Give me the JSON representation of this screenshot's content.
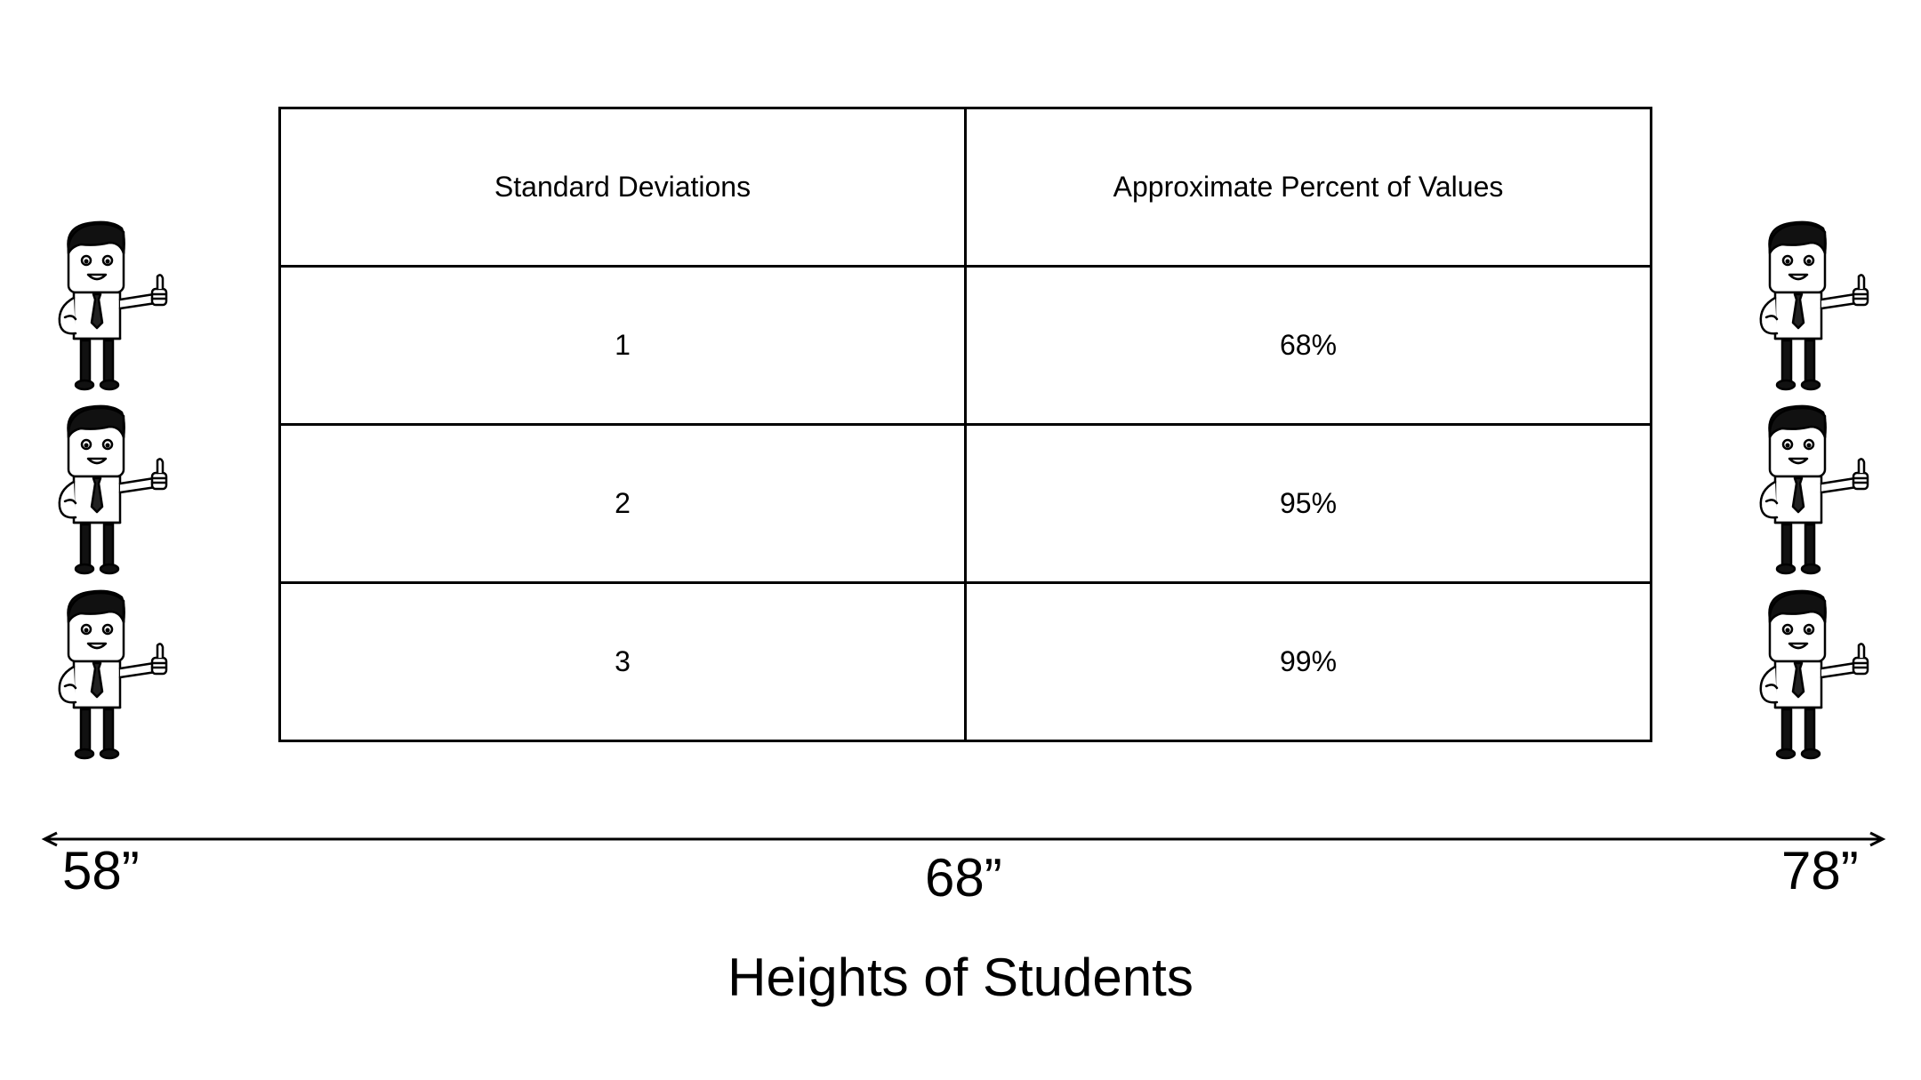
{
  "table": {
    "headers": [
      "Standard Deviations",
      "Approximate Percent of Values"
    ],
    "rows": [
      [
        "1",
        "68%"
      ],
      [
        "2",
        "95%"
      ],
      [
        "3",
        "99%"
      ]
    ]
  },
  "axis": {
    "left_label": "58”",
    "center_label": "68”",
    "right_label": "78”",
    "title": "Heights of Students"
  },
  "figures": {
    "icon": "cartoon-student-thumbs-up-icon",
    "left_count": 3,
    "right_count": 3
  }
}
